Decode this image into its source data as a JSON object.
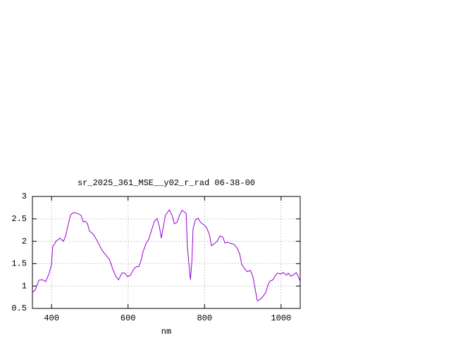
{
  "chart_data": {
    "type": "line",
    "title": "sr_2025_361_MSE__y02_r_rad 06-38-00",
    "x_label": "nm",
    "xlim": [
      350,
      1050
    ],
    "xticks": [
      400,
      600,
      800,
      1000
    ],
    "ylim": [
      0.5,
      3
    ],
    "yticks": [
      0.5,
      1,
      1.5,
      2,
      2.5,
      3
    ],
    "grid": true,
    "x": [
      350,
      357,
      367,
      376,
      385,
      394,
      400,
      403,
      413,
      422,
      431,
      437,
      444,
      450,
      457,
      468,
      477,
      483,
      488,
      494,
      499,
      510,
      523,
      532,
      542,
      551,
      560,
      568,
      575,
      584,
      591,
      599,
      606,
      615,
      623,
      628,
      634,
      639,
      647,
      654,
      662,
      669,
      676,
      682,
      687,
      693,
      698,
      708,
      715,
      721,
      728,
      735,
      741,
      748,
      752,
      755,
      763,
      767,
      770,
      776,
      783,
      790,
      798,
      805,
      813,
      818,
      826,
      833,
      840,
      848,
      853,
      861,
      868,
      877,
      885,
      892,
      897,
      905,
      912,
      920,
      927,
      932,
      938,
      945,
      953,
      960,
      966,
      971,
      979,
      984,
      991,
      999,
      1006,
      1014,
      1019,
      1025,
      1032,
      1040,
      1045,
      1050
    ],
    "series": [
      {
        "color": "#9400d3",
        "values": [
          0.86,
          0.91,
          1.13,
          1.14,
          1.1,
          1.29,
          1.49,
          1.88,
          2.01,
          2.07,
          2.0,
          2.12,
          2.39,
          2.59,
          2.64,
          2.62,
          2.58,
          2.43,
          2.45,
          2.39,
          2.23,
          2.15,
          1.95,
          1.8,
          1.69,
          1.6,
          1.38,
          1.22,
          1.14,
          1.29,
          1.29,
          1.21,
          1.24,
          1.38,
          1.44,
          1.43,
          1.57,
          1.76,
          1.95,
          2.04,
          2.26,
          2.45,
          2.51,
          2.32,
          2.07,
          2.36,
          2.59,
          2.7,
          2.58,
          2.39,
          2.42,
          2.59,
          2.69,
          2.65,
          2.62,
          1.88,
          1.14,
          1.57,
          2.28,
          2.48,
          2.51,
          2.42,
          2.37,
          2.31,
          2.14,
          1.9,
          1.95,
          2.0,
          2.12,
          2.09,
          1.96,
          1.98,
          1.95,
          1.93,
          1.85,
          1.71,
          1.49,
          1.38,
          1.32,
          1.35,
          1.19,
          0.94,
          0.67,
          0.7,
          0.77,
          0.86,
          1.03,
          1.11,
          1.14,
          1.22,
          1.29,
          1.27,
          1.3,
          1.24,
          1.29,
          1.22,
          1.25,
          1.3,
          1.21,
          1.1
        ]
      }
    ]
  }
}
